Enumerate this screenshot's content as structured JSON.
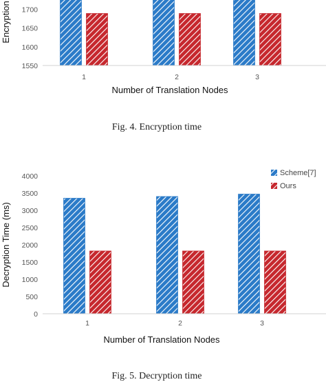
{
  "chart_data": [
    {
      "type": "bar",
      "title": "",
      "caption": "Fig. 4.  Encryption time",
      "xlabel": "Number of Translation Nodes",
      "ylabel": "Encryption",
      "categories": [
        "1",
        "2",
        "3"
      ],
      "yticks": [
        "1550",
        "1600",
        "1650",
        "1700"
      ],
      "ylim": [
        1550,
        1725
      ],
      "grid": false,
      "legend": "none",
      "series": [
        {
          "values": [
            1800,
            1800,
            1800
          ],
          "color": "#2b7bc8",
          "pattern": "diagonal-hatch"
        },
        {
          "values": [
            1689,
            1689,
            1689
          ],
          "color": "#c6282e",
          "pattern": "diagonal-hatch"
        }
      ]
    },
    {
      "type": "bar",
      "title": "",
      "caption": "Fig. 5.  Decryption time",
      "xlabel": "Number of Translation Nodes",
      "ylabel": "Decryption Time (ms)",
      "categories": [
        "1",
        "2",
        "3"
      ],
      "yticks": [
        "0",
        "500",
        "1000",
        "1500",
        "2000",
        "2500",
        "3000",
        "3500",
        "4000"
      ],
      "ylim": [
        0,
        4000
      ],
      "grid": false,
      "legend": "top-right",
      "series": [
        {
          "name": "Scheme[7]",
          "values": [
            3350,
            3400,
            3470
          ],
          "color": "#2b7bc8",
          "pattern": "diagonal-hatch"
        },
        {
          "name": "Ours",
          "values": [
            1820,
            1820,
            1820
          ],
          "color": "#c6282e",
          "pattern": "diagonal-hatch"
        }
      ]
    }
  ]
}
